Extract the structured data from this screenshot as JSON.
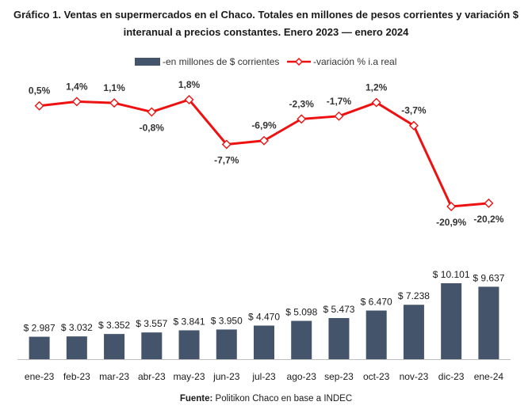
{
  "chart_data": {
    "type": "bar+line",
    "title_line1": "Gráfico 1. Ventas en supermercados en el Chaco. Totales en millones de pesos corrientes y variación $",
    "title_line2": "interanual a precios constantes. Enero 2023 — enero 2024",
    "categories": [
      "ene-23",
      "feb-23",
      "mar-23",
      "abr-23",
      "may-23",
      "jun-23",
      "jul-23",
      "ago-23",
      "sep-23",
      "oct-23",
      "nov-23",
      "dic-23",
      "ene-24"
    ],
    "bar_series": {
      "name": "-en millones de $ corrientes",
      "values": [
        2987,
        3032,
        3352,
        3557,
        3841,
        3950,
        4470,
        5098,
        5473,
        6470,
        7238,
        10101,
        9637
      ],
      "labels": [
        "$ 2.987",
        "$ 3.032",
        "$ 3.352",
        "$ 3.557",
        "$ 3.841",
        "$ 3.950",
        "$ 4.470",
        "$ 5.098",
        "$ 5.473",
        "$ 6.470",
        "$ 7.238",
        "$ 10.101",
        "$ 9.637"
      ],
      "color": "#44546a"
    },
    "line_series": {
      "name": "-variación % i.a real",
      "values": [
        0.5,
        1.4,
        1.1,
        -0.8,
        1.8,
        -7.7,
        -6.9,
        -2.3,
        -1.7,
        1.2,
        -3.7,
        -20.9,
        -20.2
      ],
      "labels": [
        "0,5%",
        "1,4%",
        "1,1%",
        "-0,8%",
        "1,8%",
        "-7,7%",
        "-6,9%",
        "-2,3%",
        "-1,7%",
        "1,2%",
        "-3,7%",
        "-20,9%",
        "-20,2%"
      ],
      "color": "#ee1111"
    }
  },
  "source": {
    "label": "Fuente:",
    "text": " Politikon Chaco en base a INDEC"
  }
}
